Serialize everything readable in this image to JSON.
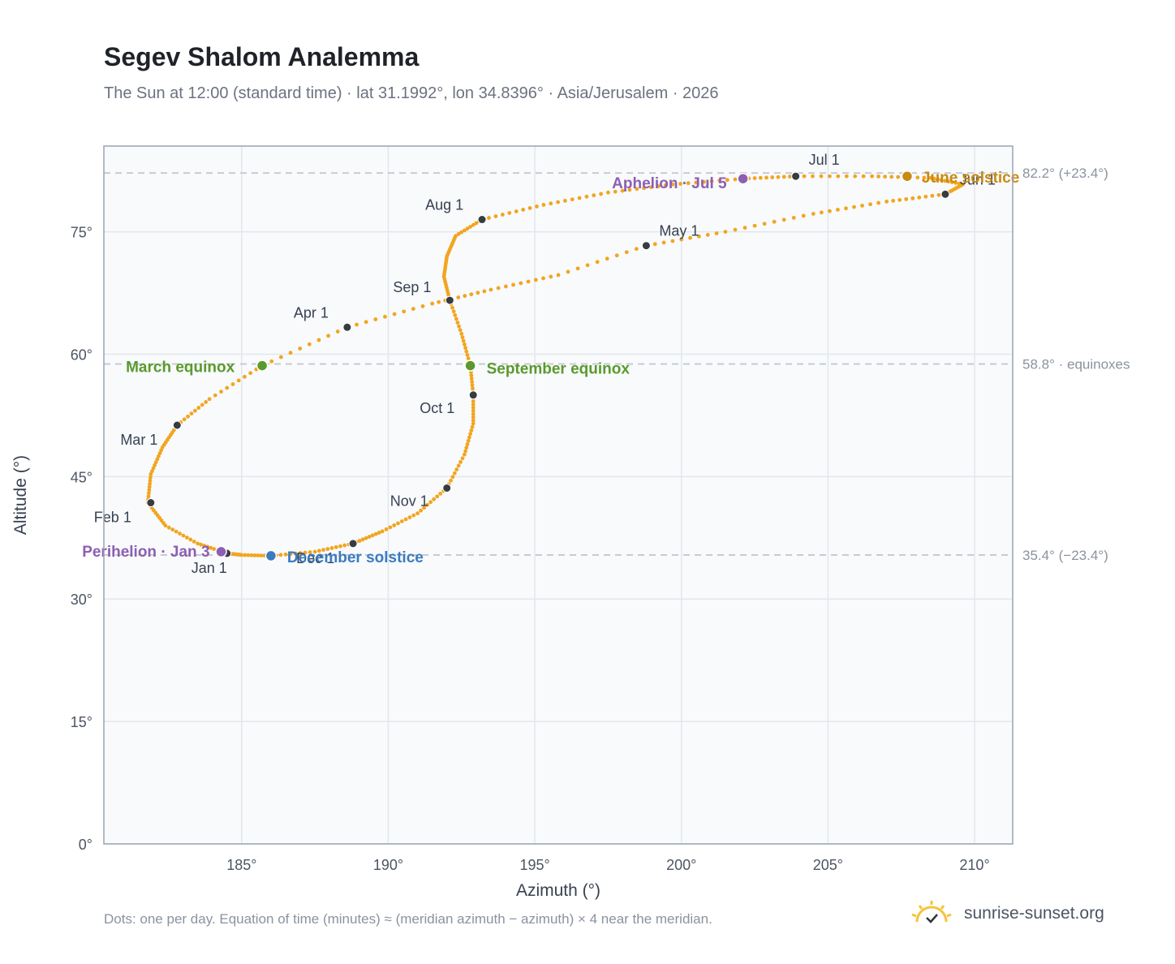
{
  "header": {
    "title": "Segev Shalom Analemma",
    "subtitle": "The Sun at 12:00 (standard time) · lat 31.1992°, lon 34.8396° · Asia/Jerusalem · 2026"
  },
  "footer": {
    "note": "Dots: one per day. Equation of time (minutes) ≈ (meridian azimuth − azimuth) × 4 near the meridian.",
    "brand": "sunrise-sunset.org"
  },
  "colors": {
    "curve": "#f2a51f",
    "month_dot": "#373c43",
    "equinox": "#5a9a2c",
    "june_solstice": "#c98a12",
    "december_solstice": "#3b7bbf",
    "apsis": "#8d5fb3",
    "grid": "#e3e7ec",
    "plot_bg": "#f8fafc",
    "ref_line": "#c3c9d0"
  },
  "chart_data": {
    "type": "scatter",
    "xlabel": "Azimuth (°)",
    "ylabel": "Altitude (°)",
    "xlim": [
      180.3,
      211.3
    ],
    "ylim": [
      0,
      85.5
    ],
    "xticks": [
      185,
      190,
      195,
      200,
      205,
      210
    ],
    "yticks": [
      0,
      15,
      30,
      45,
      60,
      75
    ],
    "xtick_labels": [
      "185°",
      "190°",
      "195°",
      "200°",
      "205°",
      "210°"
    ],
    "ytick_labels": [
      "0°",
      "15°",
      "30°",
      "45°",
      "60°",
      "75°"
    ],
    "grid": true,
    "reference_lines": [
      {
        "altitude": 82.2,
        "label": "82.2° (+23.4°)"
      },
      {
        "altitude": 58.8,
        "label": "58.8° · equinoxes"
      },
      {
        "altitude": 35.4,
        "label": "35.4° (−23.4°)"
      }
    ],
    "series": [
      {
        "points": [
          [
            184.5,
            35.6
          ],
          [
            183.5,
            36.8
          ],
          [
            182.4,
            39.0
          ],
          [
            181.8,
            41.8
          ],
          [
            181.9,
            45.3
          ],
          [
            182.3,
            48.6
          ],
          [
            182.8,
            51.3
          ],
          [
            183.9,
            54.5
          ],
          [
            185.7,
            58.6
          ],
          [
            188.6,
            63.3
          ],
          [
            191.5,
            66.2
          ],
          [
            193.5,
            67.9
          ],
          [
            195.8,
            69.7
          ],
          [
            198.8,
            73.3
          ],
          [
            201.5,
            75.0
          ],
          [
            204.5,
            77.2
          ],
          [
            207.0,
            78.7
          ],
          [
            209.0,
            79.6
          ],
          [
            209.6,
            80.8
          ],
          [
            208.5,
            81.6
          ],
          [
            206.5,
            81.8
          ],
          [
            203.9,
            81.8
          ],
          [
            202.1,
            81.5
          ],
          [
            199.7,
            80.8
          ],
          [
            197.5,
            79.8
          ],
          [
            195.3,
            78.3
          ],
          [
            193.2,
            76.5
          ],
          [
            192.3,
            74.5
          ],
          [
            192.0,
            72.0
          ],
          [
            191.9,
            69.5
          ],
          [
            192.1,
            66.6
          ],
          [
            192.5,
            62.5
          ],
          [
            192.8,
            58.6
          ],
          [
            192.9,
            55.0
          ],
          [
            192.9,
            51.5
          ],
          [
            192.6,
            47.7
          ],
          [
            192.0,
            43.6
          ],
          [
            191.0,
            40.5
          ],
          [
            189.8,
            38.3
          ],
          [
            188.8,
            36.8
          ],
          [
            187.5,
            35.8
          ],
          [
            186.0,
            35.3
          ],
          [
            185.0,
            35.4
          ],
          [
            184.5,
            35.6
          ]
        ]
      }
    ],
    "month_markers": [
      {
        "label": "Jan 1",
        "az": 184.5,
        "alt": 35.6
      },
      {
        "label": "Feb 1",
        "az": 181.9,
        "alt": 41.8
      },
      {
        "label": "Mar 1",
        "az": 182.8,
        "alt": 51.3
      },
      {
        "label": "Apr 1",
        "az": 188.6,
        "alt": 63.3
      },
      {
        "label": "May 1",
        "az": 198.8,
        "alt": 73.3
      },
      {
        "label": "Jun 1",
        "az": 209.0,
        "alt": 79.6
      },
      {
        "label": "Jul 1",
        "az": 203.9,
        "alt": 81.8
      },
      {
        "label": "Aug 1",
        "az": 193.2,
        "alt": 76.5
      },
      {
        "label": "Sep 1",
        "az": 192.1,
        "alt": 66.6
      },
      {
        "label": "Oct 1",
        "az": 192.9,
        "alt": 55.0
      },
      {
        "label": "Nov 1",
        "az": 192.0,
        "alt": 43.6
      },
      {
        "label": "Dec 1",
        "az": 188.8,
        "alt": 36.8
      }
    ],
    "events": [
      {
        "label": "March equinox",
        "az": 185.7,
        "alt": 58.6,
        "color": "#5a9a2c"
      },
      {
        "label": "September equinox",
        "az": 192.8,
        "alt": 58.6,
        "color": "#5a9a2c"
      },
      {
        "label": "June solstice",
        "az": 207.7,
        "alt": 81.8,
        "color": "#c98a12"
      },
      {
        "label": "December solstice",
        "az": 186.0,
        "alt": 35.3,
        "color": "#3b7bbf"
      },
      {
        "label": "Perihelion · Jan 3",
        "az": 184.3,
        "alt": 35.8,
        "color": "#8d5fb3"
      },
      {
        "label": "Aphelion · Jul 5",
        "az": 202.1,
        "alt": 81.5,
        "color": "#8d5fb3"
      }
    ]
  }
}
